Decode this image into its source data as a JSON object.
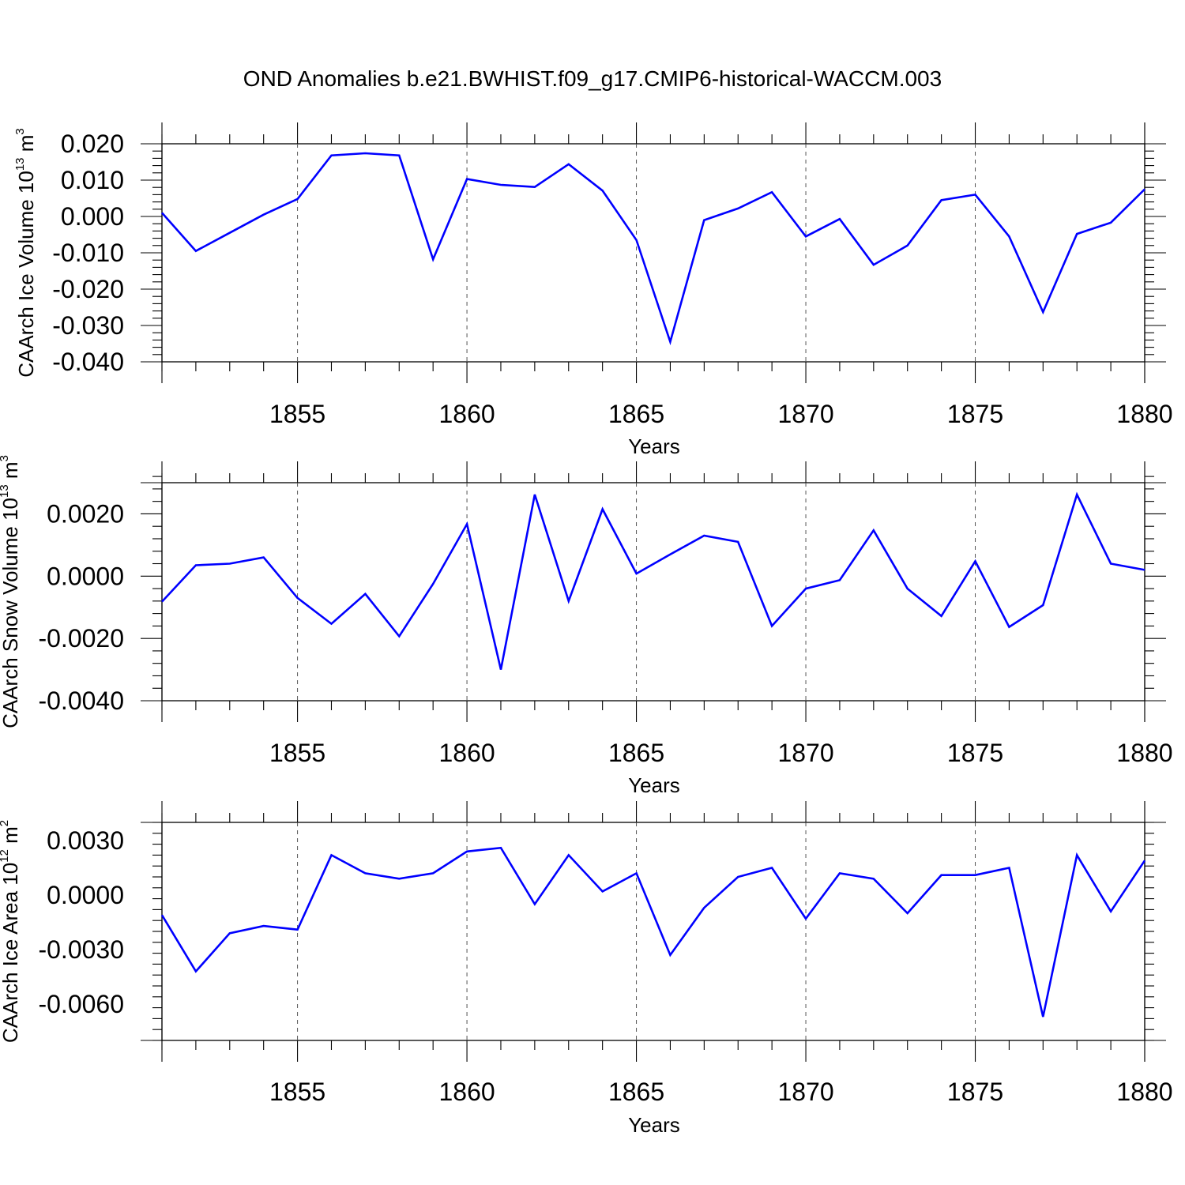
{
  "title": "OND Anomalies b.e21.BWHIST.f09_g17.CMIP6-historical-WACCM.003",
  "line_color": "#0000ff",
  "chart_data": [
    {
      "type": "line",
      "ylabel_main": "CAArch Ice Volume 10",
      "ylabel_exp": "13",
      "ylabel_unit": " m",
      "ylabel_unit_exp": "3",
      "xlabel": "Years",
      "xlim": [
        1851,
        1880
      ],
      "ylim": [
        -0.04,
        0.02
      ],
      "grid": "vertical dashed at major x ticks",
      "x_ticks": [
        1855,
        1860,
        1865,
        1870,
        1875,
        1880
      ],
      "y_ticks": [
        0.02,
        0.01,
        0.0,
        -0.01,
        -0.02,
        -0.03,
        -0.04
      ],
      "y_tick_labels": [
        "0.020",
        "0.010",
        "0.000",
        "-0.010",
        "-0.020",
        "-0.030",
        "-0.040"
      ],
      "x": [
        1851,
        1852,
        1853,
        1854,
        1855,
        1856,
        1857,
        1858,
        1859,
        1860,
        1861,
        1862,
        1863,
        1864,
        1865,
        1866,
        1867,
        1868,
        1869,
        1870,
        1871,
        1872,
        1873,
        1874,
        1875,
        1876,
        1877,
        1878,
        1879,
        1880
      ],
      "values": [
        0.001,
        -0.0095,
        -0.0045,
        0.0005,
        0.0048,
        0.0168,
        0.0174,
        0.0168,
        -0.0118,
        0.0103,
        0.0087,
        0.0081,
        0.0144,
        0.0071,
        -0.0065,
        -0.0345,
        -0.001,
        0.0022,
        0.0067,
        -0.0055,
        -0.0007,
        -0.0133,
        -0.008,
        0.0045,
        0.006,
        -0.0055,
        -0.0263,
        -0.0048,
        -0.0017,
        0.0075
      ]
    },
    {
      "type": "line",
      "ylabel_main": "CAArch Snow Volume 10",
      "ylabel_exp": "13",
      "ylabel_unit": " m",
      "ylabel_unit_exp": "3",
      "xlabel": "Years",
      "xlim": [
        1851,
        1880
      ],
      "ylim": [
        -0.004,
        0.003
      ],
      "grid": "vertical dashed at major x ticks",
      "x_ticks": [
        1855,
        1860,
        1865,
        1870,
        1875,
        1880
      ],
      "y_ticks": [
        0.002,
        0.0,
        -0.002,
        -0.004
      ],
      "y_tick_labels": [
        "0.0020",
        "0.0000",
        "-0.0020",
        "-0.0040"
      ],
      "x": [
        1851,
        1852,
        1853,
        1854,
        1855,
        1856,
        1857,
        1858,
        1859,
        1860,
        1861,
        1862,
        1863,
        1864,
        1865,
        1866,
        1867,
        1868,
        1869,
        1870,
        1871,
        1872,
        1873,
        1874,
        1875,
        1876,
        1877,
        1878,
        1879,
        1880
      ],
      "values": [
        -0.00082,
        0.00035,
        0.0004,
        0.0006,
        -0.0007,
        -0.00153,
        -0.00057,
        -0.00193,
        -0.00025,
        0.00167,
        -0.003,
        0.00262,
        -0.0008,
        0.00215,
        8e-05,
        0.0007,
        0.0013,
        0.0011,
        -0.0016,
        -0.0004,
        -0.00013,
        0.00147,
        -0.0004,
        -0.00128,
        0.00048,
        -0.00163,
        -0.00093,
        0.00262,
        0.0004,
        0.0002
      ]
    },
    {
      "type": "line",
      "ylabel_main": "CAArch Ice Area 10",
      "ylabel_exp": "12",
      "ylabel_unit": " m",
      "ylabel_unit_exp": "2",
      "xlabel": "Years",
      "xlim": [
        1851,
        1880
      ],
      "ylim": [
        -0.008,
        0.004
      ],
      "grid": "vertical dashed at major x ticks",
      "x_ticks": [
        1855,
        1860,
        1865,
        1870,
        1875,
        1880
      ],
      "y_ticks": [
        0.003,
        0.0,
        -0.003,
        -0.006
      ],
      "y_tick_labels": [
        "0.0030",
        "0.0000",
        "-0.0030",
        "-0.0060"
      ],
      "x": [
        1851,
        1852,
        1853,
        1854,
        1855,
        1856,
        1857,
        1858,
        1859,
        1860,
        1861,
        1862,
        1863,
        1864,
        1865,
        1866,
        1867,
        1868,
        1869,
        1870,
        1871,
        1872,
        1873,
        1874,
        1875,
        1876,
        1877,
        1878,
        1879,
        1880
      ],
      "values": [
        -0.0011,
        -0.0042,
        -0.0021,
        -0.0017,
        -0.0019,
        0.0022,
        0.0012,
        0.0009,
        0.0012,
        0.0024,
        0.0026,
        -0.0005,
        0.0022,
        0.0002,
        0.0012,
        -0.0033,
        -0.0007,
        0.001,
        0.0015,
        -0.0013,
        0.0012,
        0.0009,
        -0.001,
        0.0011,
        0.0011,
        0.0015,
        -0.0067,
        0.0022,
        -0.0009,
        0.0019
      ]
    }
  ]
}
